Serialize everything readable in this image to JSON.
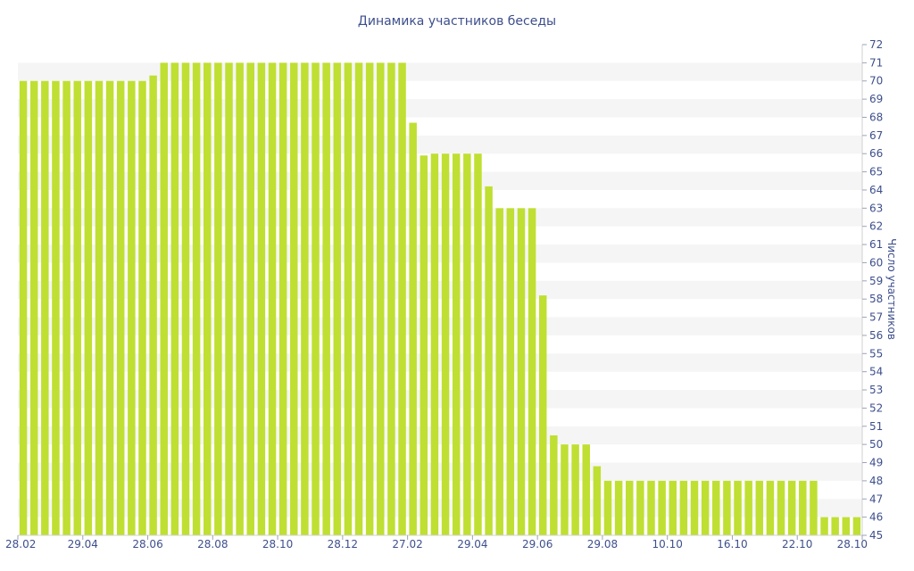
{
  "chart_data": {
    "type": "bar",
    "title": "Динамика участников беседы",
    "ylabel": "Число участников",
    "xlabel": "",
    "ylim": [
      45,
      72
    ],
    "y_ticks": [
      45,
      46,
      47,
      48,
      49,
      50,
      51,
      52,
      53,
      54,
      55,
      56,
      57,
      58,
      59,
      60,
      61,
      62,
      63,
      64,
      65,
      66,
      67,
      68,
      69,
      70,
      71,
      72
    ],
    "x_tick_labels": [
      "28.02",
      "29.04",
      "28.06",
      "28.08",
      "28.10",
      "28.12",
      "27.02",
      "29.04",
      "29.06",
      "29.08",
      "10.10",
      "16.10",
      "22.10",
      "28.10"
    ],
    "grid": "alternating horizontal bands",
    "bar_color": "#bfdf32",
    "band_color": "#f5f5f5",
    "values": [
      70,
      70,
      70,
      70,
      70,
      70,
      70,
      70,
      70,
      70,
      70,
      70,
      70.3,
      71,
      71,
      71,
      71,
      71,
      71,
      71,
      71,
      71,
      71,
      71,
      71,
      71,
      71,
      71,
      71,
      71,
      71,
      71,
      71,
      71,
      71,
      71,
      67.7,
      65.9,
      66,
      66,
      66,
      66,
      66,
      64.2,
      63,
      63,
      63,
      63,
      58.2,
      50.5,
      50,
      50,
      50,
      48.8,
      48,
      48,
      48,
      48,
      48,
      48,
      48,
      48,
      48,
      48,
      48,
      48,
      48,
      48,
      48,
      48,
      48,
      48,
      48,
      48,
      46,
      46,
      46,
      46
    ]
  }
}
